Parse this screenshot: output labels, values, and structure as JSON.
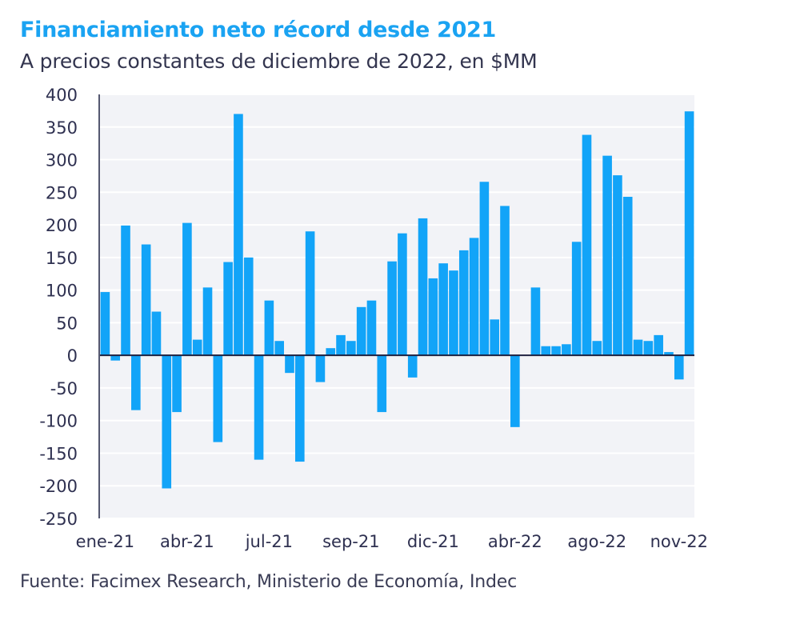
{
  "colors": {
    "bar": "#12a4f8",
    "title": "#1aa3f2",
    "plot_bg": "#f2f3f7",
    "axis": "#2e3050",
    "gridline": "#ffffff"
  },
  "chart_data": {
    "type": "bar",
    "title": "Financiamiento neto récord desde 2021",
    "subtitle": "A precios constantes de diciembre de 2022, en $MM",
    "source": "Fuente: Facimex Research, Ministerio de Economía, Indec",
    "xlabel": "",
    "ylabel": "",
    "ylim": [
      -250,
      400
    ],
    "y_ticks": [
      400,
      350,
      300,
      250,
      200,
      150,
      100,
      50,
      0,
      -50,
      -100,
      -150,
      -200,
      -250
    ],
    "x_tick_labels": [
      {
        "bar_index": 0,
        "label": "ene-21"
      },
      {
        "bar_index": 8,
        "label": "abr-21"
      },
      {
        "bar_index": 16,
        "label": "jul-21"
      },
      {
        "bar_index": 24,
        "label": "sep-21"
      },
      {
        "bar_index": 32,
        "label": "dic-21"
      },
      {
        "bar_index": 40,
        "label": "abr-22"
      },
      {
        "bar_index": 48,
        "label": "ago-22"
      },
      {
        "bar_index": 56,
        "label": "nov-22"
      }
    ],
    "grid": true,
    "legend": "none",
    "values": [
      97,
      -8,
      199,
      -84,
      170,
      67,
      -204,
      -87,
      203,
      24,
      104,
      -133,
      143,
      370,
      150,
      -160,
      84,
      22,
      -27,
      -163,
      190,
      -41,
      11,
      31,
      22,
      74,
      84,
      -87,
      144,
      187,
      -34,
      210,
      118,
      141,
      130,
      161,
      180,
      266,
      55,
      229,
      -110,
      0,
      104,
      14,
      14,
      17,
      174,
      338,
      22,
      306,
      276,
      243,
      24,
      22,
      31,
      5,
      -37,
      374
    ]
  }
}
